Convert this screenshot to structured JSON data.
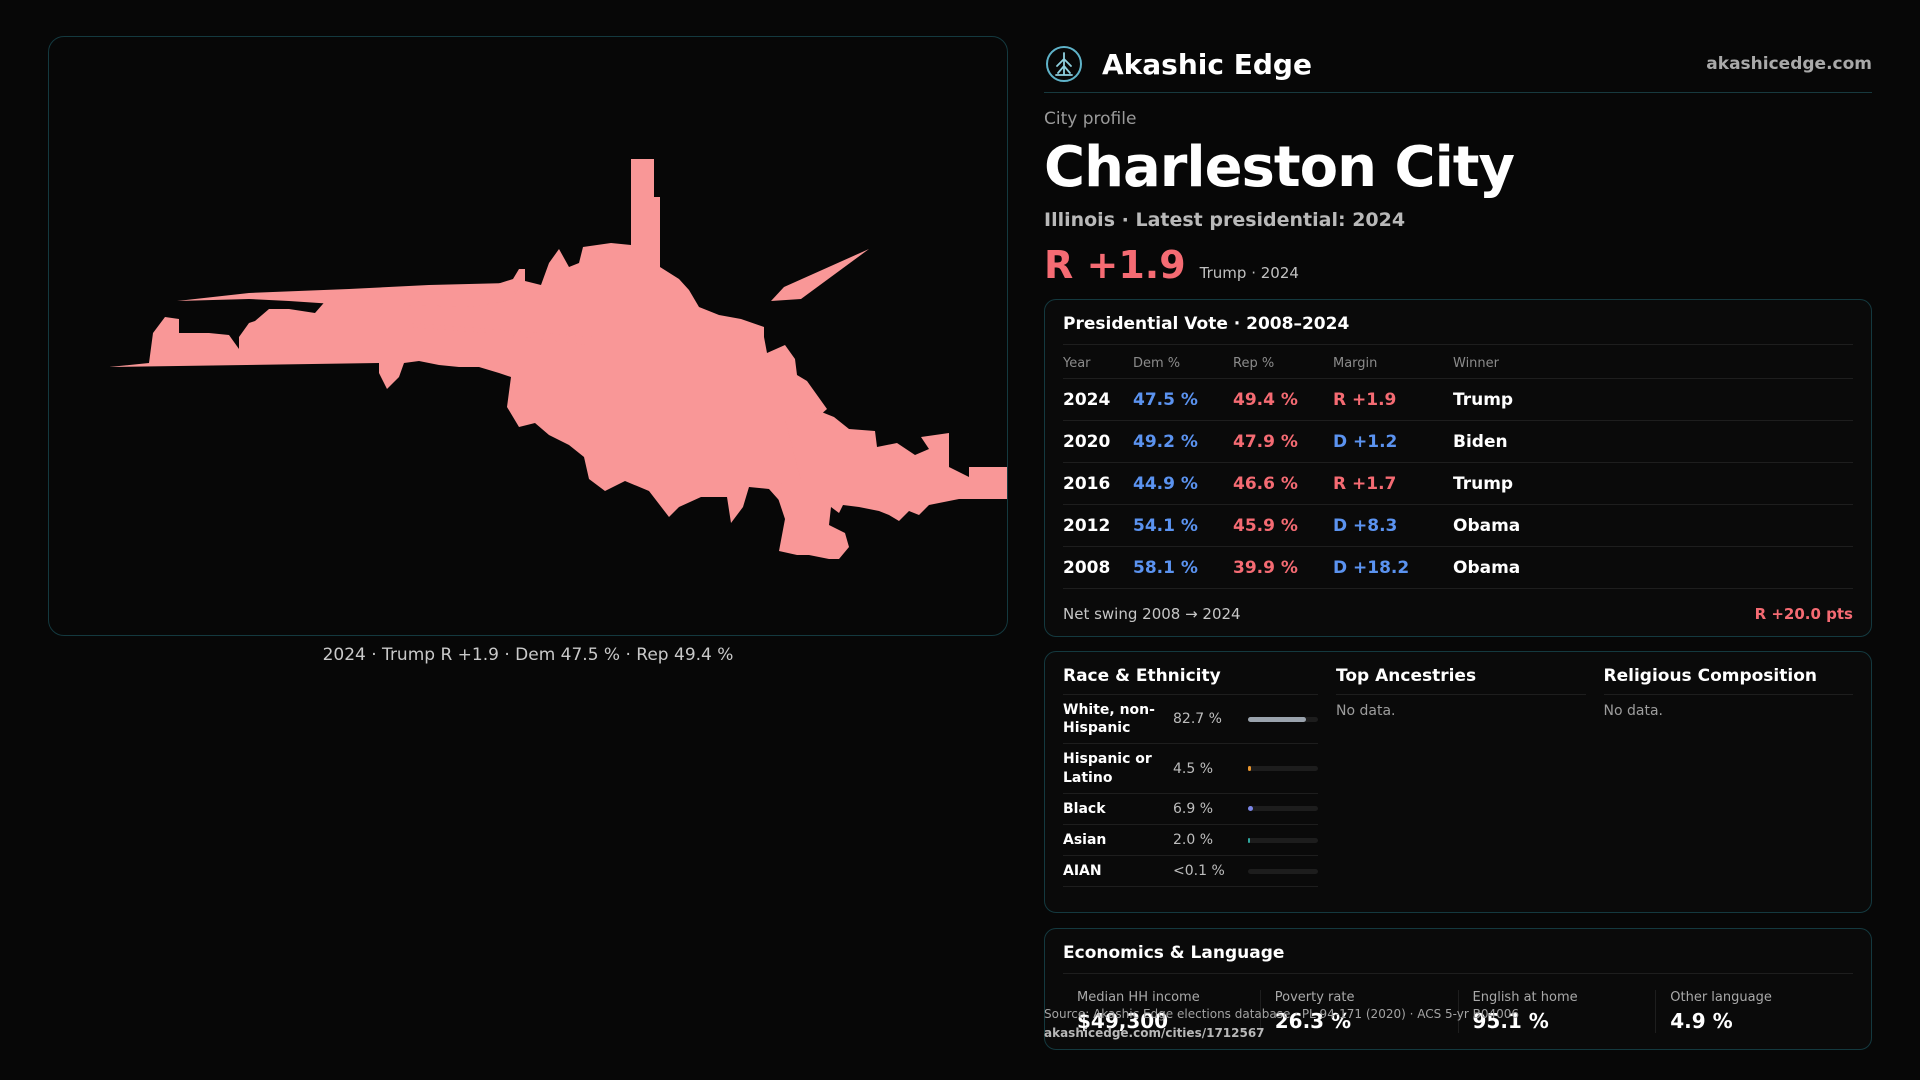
{
  "map": {
    "caption": "2024 · Trump R +1.9 · Dem 47.5 % · Rep 49.4 %",
    "fill_color": "#f99797"
  },
  "brand": {
    "name": "Akashic Edge",
    "url": "akashicedge.com",
    "logo_icon": "tree-emblem-icon"
  },
  "profile": {
    "kicker": "City profile",
    "city": "Charleston City",
    "subtitle": "Illinois · Latest presidential: 2024",
    "lead_margin": "R +1.9",
    "lead_meta": "Trump · 2024"
  },
  "vote": {
    "title": "Presidential Vote · 2008–2024",
    "headers": {
      "year": "Year",
      "dem": "Dem %",
      "rep": "Rep %",
      "margin": "Margin",
      "winner": "Winner"
    },
    "rows": [
      {
        "year": "2024",
        "dem": "47.5 %",
        "rep": "49.4 %",
        "margin": "R +1.9",
        "party": "R",
        "winner": "Trump"
      },
      {
        "year": "2020",
        "dem": "49.2 %",
        "rep": "47.9 %",
        "margin": "D +1.2",
        "party": "D",
        "winner": "Biden"
      },
      {
        "year": "2016",
        "dem": "44.9 %",
        "rep": "46.6 %",
        "margin": "R +1.7",
        "party": "R",
        "winner": "Trump"
      },
      {
        "year": "2012",
        "dem": "54.1 %",
        "rep": "45.9 %",
        "margin": "D +8.3",
        "party": "D",
        "winner": "Obama"
      },
      {
        "year": "2008",
        "dem": "58.1 %",
        "rep": "39.9 %",
        "margin": "D +18.2",
        "party": "D",
        "winner": "Obama"
      }
    ],
    "swing_label": "Net swing 2008 → 2024",
    "swing_value": "R +20.0 pts"
  },
  "demographics": {
    "race": {
      "title": "Race & Ethnicity",
      "rows": [
        {
          "label": "White, non-Hispanic",
          "pct": "82.7 %",
          "fraction": 0.827,
          "color": "#9aa3ad"
        },
        {
          "label": "Hispanic or Latino",
          "pct": "4.5 %",
          "fraction": 0.045,
          "color": "#e8952e"
        },
        {
          "label": "Black",
          "pct": "6.9 %",
          "fraction": 0.069,
          "color": "#7b86e8"
        },
        {
          "label": "Asian",
          "pct": "2.0 %",
          "fraction": 0.02,
          "color": "#2fa7a0"
        },
        {
          "label": "AIAN",
          "pct": "<0.1 %",
          "fraction": 0.0,
          "color": "#c07ad9"
        }
      ]
    },
    "ancestries": {
      "title": "Top Ancestries",
      "empty": "No data."
    },
    "religion": {
      "title": "Religious Composition",
      "empty": "No data."
    }
  },
  "economics": {
    "title": "Economics & Language",
    "cells": [
      {
        "label": "Median HH income",
        "value": "$49,300"
      },
      {
        "label": "Poverty rate",
        "value": "26.3 %"
      },
      {
        "label": "English at home",
        "value": "95.1 %"
      },
      {
        "label": "Other language",
        "value": "4.9 %"
      }
    ]
  },
  "source": {
    "text": "Source: Akashic Edge elections database · PL 94-171 (2020) · ACS 5-yr B04006",
    "url": "akashicedge.com/cities/1712567"
  }
}
